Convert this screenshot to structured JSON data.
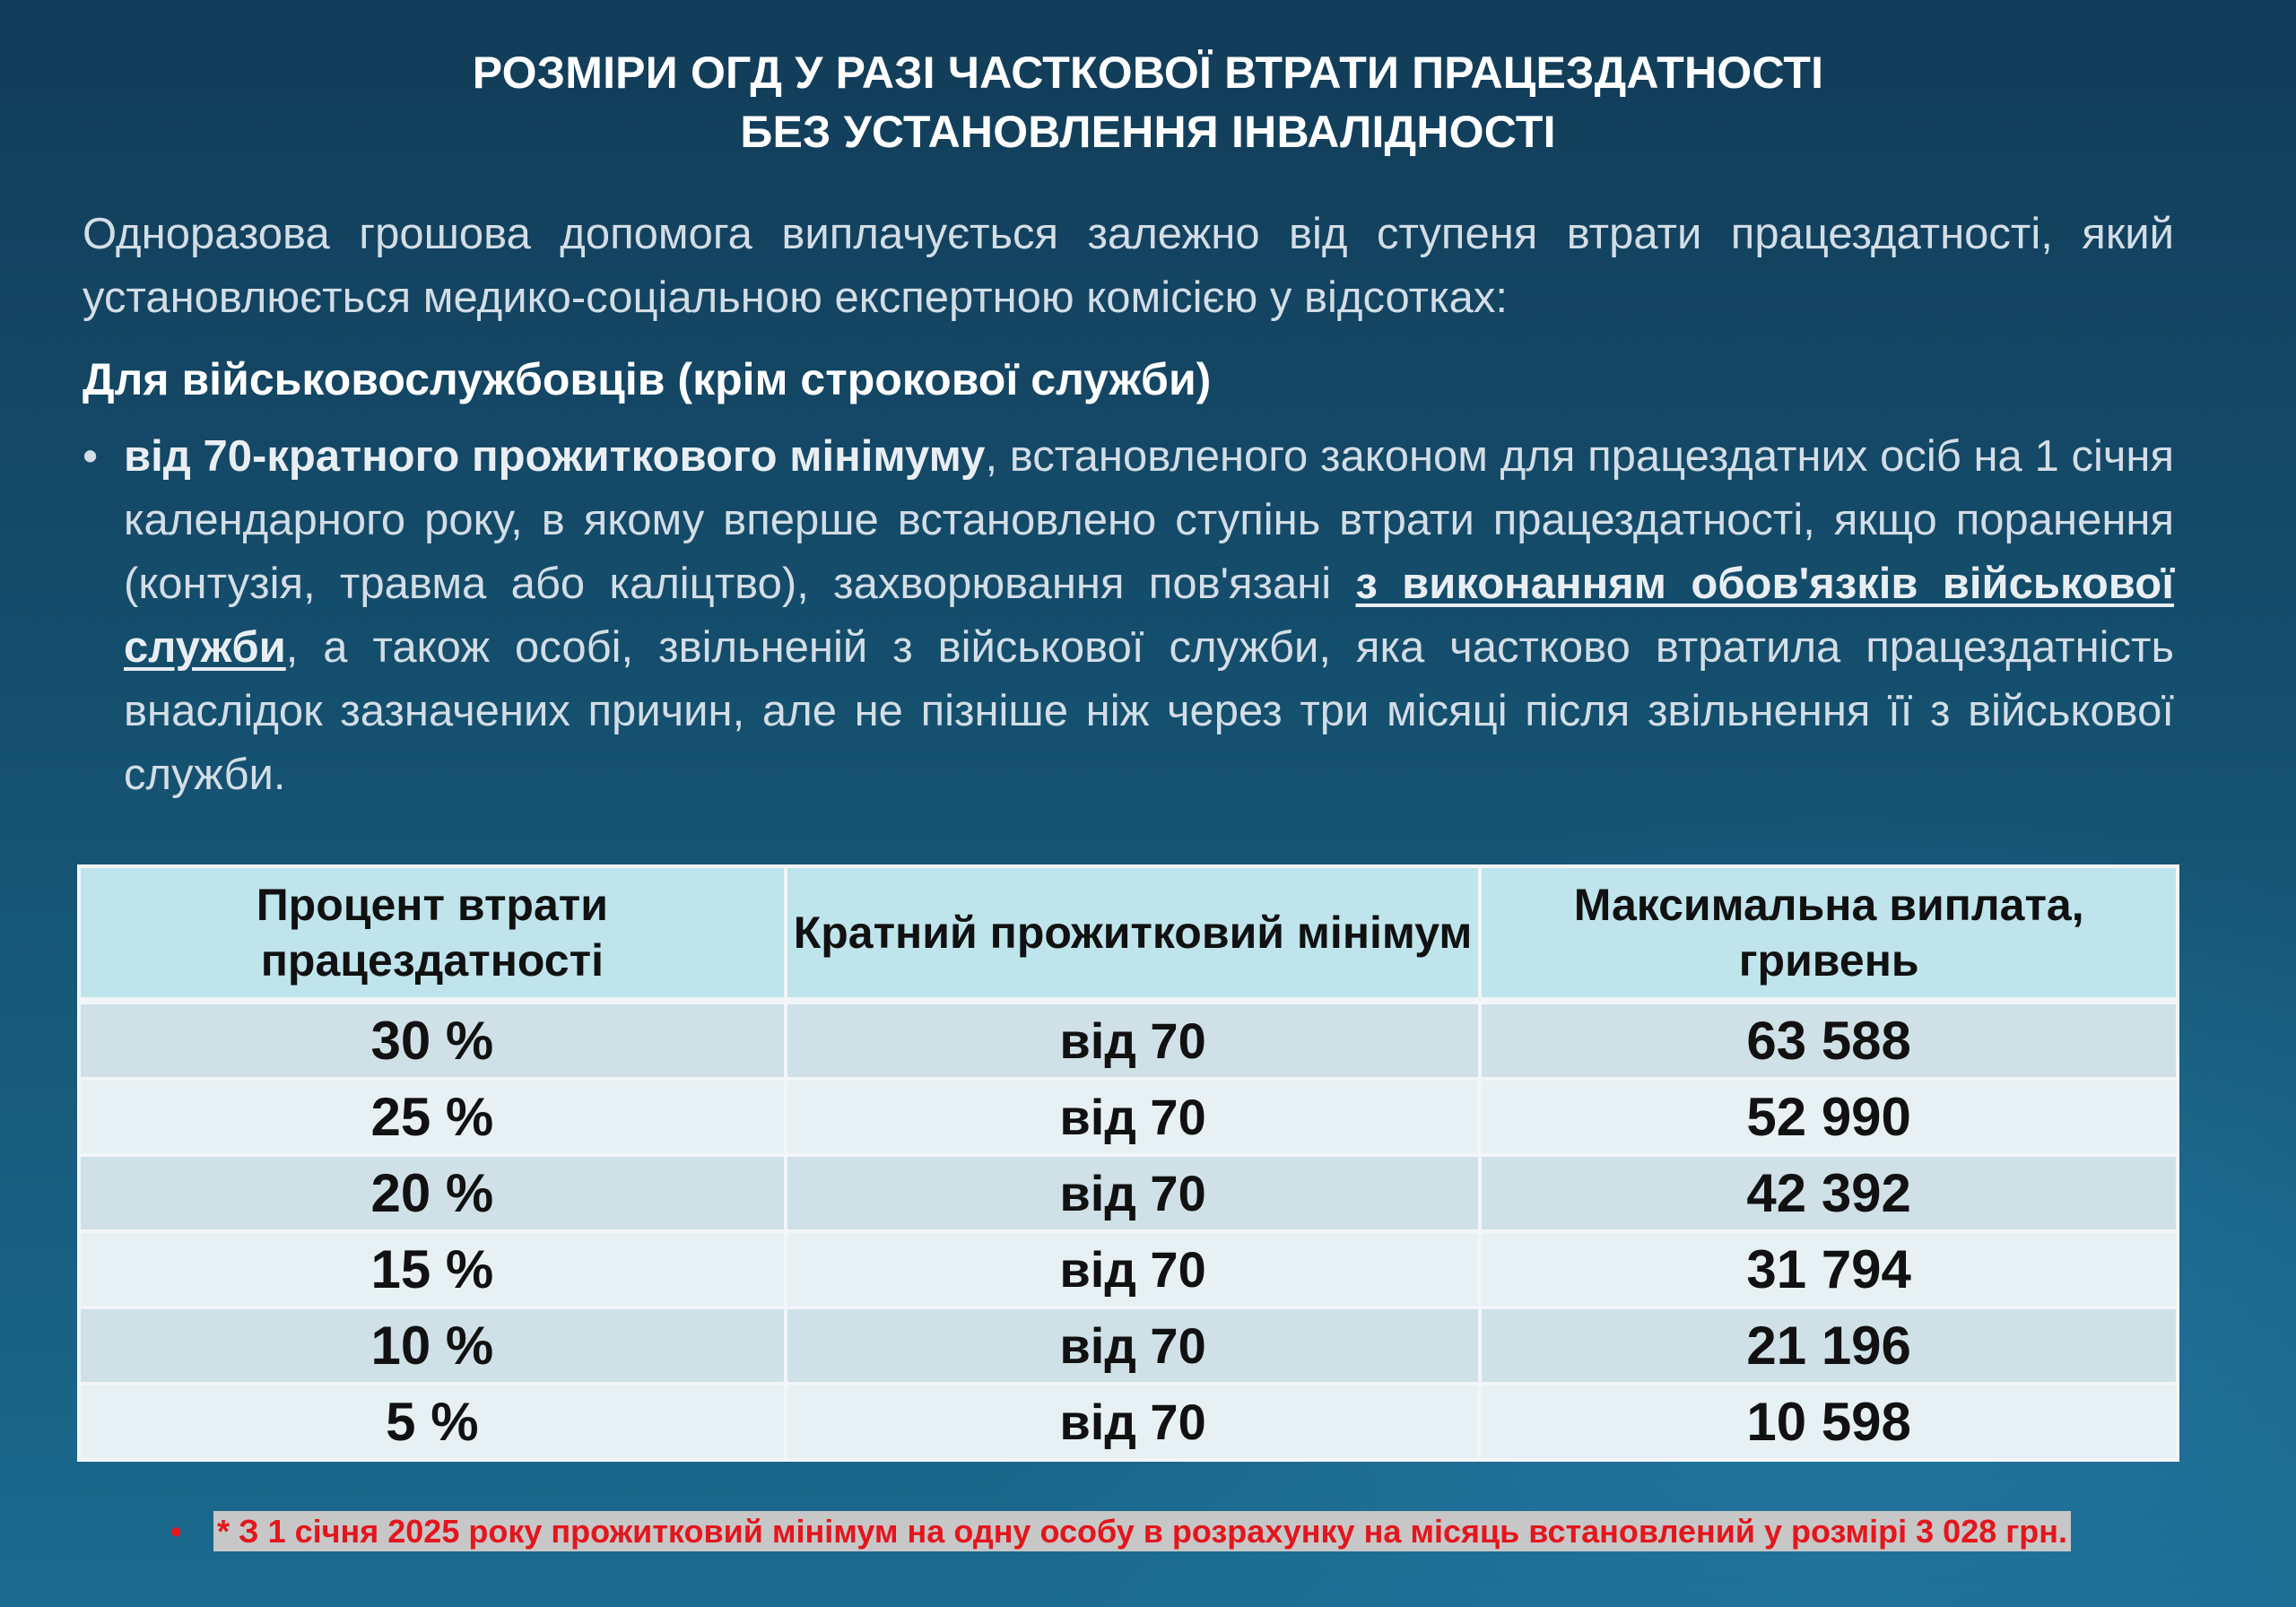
{
  "title": {
    "line1": "РОЗМІРИ ОГД У РАЗІ ЧАСТКОВОЇ ВТРАТИ ПРАЦЕЗДАТНОСТІ",
    "line2": "БЕЗ УСТАНОВЛЕННЯ ІНВАЛІДНОСТІ"
  },
  "intro": "Одноразова грошова допомога виплачується залежно від ступеня втрати працездатності, який установлюється медико-соціальною експертною комісією у відсотках:",
  "subheading": "Для військовослужбовців (крім строкової служби)",
  "bullet": {
    "marker": "•",
    "bold_lead": "від 70-кратного прожиткового мінімуму",
    "text_1": ", встановленого законом для працездатних осіб на 1 січня календарного року, в якому вперше встановлено ступінь втрати працездатності, якщо поранення (контузія, травма або каліцтво), захворювання пов'язані ",
    "bold_underlined": "з виконанням обов'язків військової служби",
    "text_2": ", а також особі, звільненій з військової служби, яка частково втратила працездатність внаслідок зазначених причин, але не пізніше ніж через три місяці після звільнення її з військової служби."
  },
  "table": {
    "headers": [
      "Процент втрати працездатності",
      "Кратний прожитковий мінімум",
      "Максимальна виплата, гривень"
    ],
    "rows": [
      {
        "percent": "30 %",
        "multiple": "від 70",
        "max_payment": "63 588"
      },
      {
        "percent": "25 %",
        "multiple": "від 70",
        "max_payment": "52 990"
      },
      {
        "percent": "20 %",
        "multiple": "від 70",
        "max_payment": "42 392"
      },
      {
        "percent": "15 %",
        "multiple": "від 70",
        "max_payment": "31 794"
      },
      {
        "percent": "10 %",
        "multiple": "від 70",
        "max_payment": "21 196"
      },
      {
        "percent": "5 %",
        "multiple": "від 70",
        "max_payment": "10 598"
      }
    ]
  },
  "footnote": {
    "marker": "•",
    "text": "* З 1 січня 2025 року прожитковий мінімум на одну особу в розрахунку на місяць встановлений у розмірі  3 028 грн."
  },
  "colors": {
    "background_top": "#123c58",
    "background_bottom": "#1b6a8f",
    "table_header": "#bfe4ec",
    "row_odd": "#cfe1e6",
    "row_even": "#e7f1f3",
    "footnote_text": "#e3161d",
    "footnote_highlight": "#c7c7c7"
  }
}
